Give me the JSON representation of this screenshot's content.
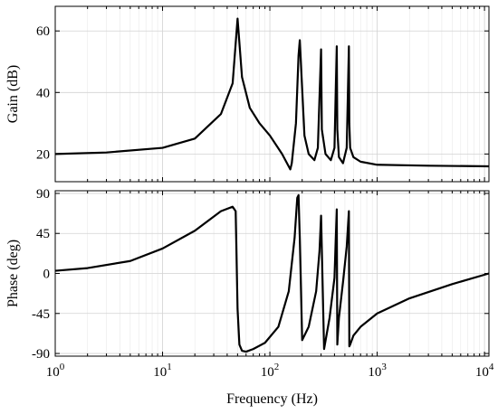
{
  "chart_data": [
    {
      "type": "line",
      "panel": "gain",
      "xscale": "log",
      "xlim": [
        1,
        11000
      ],
      "ylim": [
        11,
        68
      ],
      "ylabel": "Gain (dB)",
      "xlabel": "",
      "yticks": [
        20,
        40,
        60
      ],
      "ytick_labels": [
        "20",
        "40",
        "60"
      ],
      "grid": true,
      "series": [
        {
          "x": [
            1,
            3,
            10,
            20,
            35,
            45,
            50,
            55,
            65,
            80,
            100,
            130,
            155,
            160,
            175,
            185,
            190,
            210,
            230,
            260,
            280,
            300,
            305,
            330,
            370,
            400,
            420,
            425,
            440,
            480,
            520,
            545,
            550,
            560,
            600,
            700,
            1000,
            3000,
            11000
          ],
          "y": [
            20,
            20.5,
            22,
            25,
            33,
            43,
            64,
            45,
            35,
            30,
            26,
            20,
            15,
            17,
            30,
            52,
            57,
            26,
            20,
            18,
            22,
            54,
            28,
            20,
            18,
            22,
            55,
            28,
            19,
            17,
            22,
            55,
            30,
            22,
            19,
            17.5,
            16.5,
            16.2,
            16
          ]
        }
      ]
    },
    {
      "type": "line",
      "panel": "phase",
      "xscale": "log",
      "xlim": [
        1,
        11000
      ],
      "ylim": [
        -93,
        93
      ],
      "ylabel": "Phase (deg)",
      "xlabel": "Frequency (Hz)",
      "yticks": [
        -90,
        -45,
        0,
        45,
        90
      ],
      "ytick_labels": [
        "-90",
        "-45",
        "0",
        "45",
        "90"
      ],
      "xticks": [
        1,
        10,
        100,
        1000,
        10000
      ],
      "xtick_labels": [
        {
          "base": "10",
          "exp": "0"
        },
        {
          "base": "10",
          "exp": "1"
        },
        {
          "base": "10",
          "exp": "2"
        },
        {
          "base": "10",
          "exp": "3"
        },
        {
          "base": "10",
          "exp": "4"
        }
      ],
      "grid": true,
      "series": [
        {
          "x": [
            1,
            2,
            5,
            10,
            20,
            35,
            45,
            48,
            50,
            52,
            55,
            60,
            70,
            90,
            120,
            150,
            170,
            180,
            185,
            190,
            200,
            230,
            270,
            290,
            300,
            320,
            360,
            400,
            420,
            425,
            440,
            480,
            520,
            545,
            550,
            560,
            600,
            700,
            1000,
            2000,
            5000,
            11000
          ],
          "y": [
            3,
            6,
            14,
            28,
            48,
            70,
            75,
            70,
            -40,
            -80,
            -87,
            -88,
            -85,
            -78,
            -60,
            -20,
            40,
            85,
            88,
            40,
            -75,
            -60,
            -20,
            25,
            65,
            -85,
            -50,
            -5,
            72,
            -80,
            -50,
            -10,
            30,
            70,
            -82,
            -80,
            -70,
            -60,
            -45,
            -28,
            -12,
            0
          ]
        }
      ]
    }
  ]
}
